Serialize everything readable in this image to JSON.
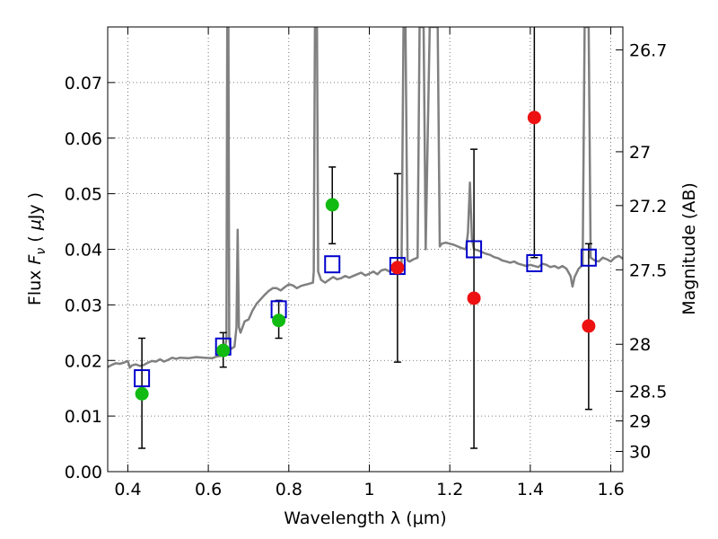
{
  "chart_data": {
    "type": "scatter",
    "xlabel": "Wavelength  λ (μm)",
    "ylabel": "Flux  F_ν  ( μJy )",
    "ylabel_parts": {
      "pre": "Flux  ",
      "F": "F",
      "nu": "ν",
      "mid": "  (  ",
      "mu": "μ",
      "post": "Jy )"
    },
    "y2label": "Magnitude (AB)",
    "xlim": [
      0.35,
      1.63
    ],
    "ylim": [
      0.0,
      0.08
    ],
    "grid": true,
    "x_ticks": [
      {
        "value": 0.4,
        "label": "0.4"
      },
      {
        "value": 0.6,
        "label": "0.6"
      },
      {
        "value": 0.8,
        "label": "0.8"
      },
      {
        "value": 1.0,
        "label": "1"
      },
      {
        "value": 1.2,
        "label": "1.2"
      },
      {
        "value": 1.4,
        "label": "1.4"
      },
      {
        "value": 1.6,
        "label": "1.6"
      }
    ],
    "y_ticks": [
      {
        "value": 0.0,
        "label": "0.00"
      },
      {
        "value": 0.01,
        "label": "0.01"
      },
      {
        "value": 0.02,
        "label": "0.02"
      },
      {
        "value": 0.03,
        "label": "0.03"
      },
      {
        "value": 0.04,
        "label": "0.04"
      },
      {
        "value": 0.05,
        "label": "0.05"
      },
      {
        "value": 0.06,
        "label": "0.06"
      },
      {
        "value": 0.07,
        "label": "0.07"
      }
    ],
    "y2_ticks": [
      {
        "value": 26.7,
        "label": "26.7"
      },
      {
        "value": 27.0,
        "label": "27"
      },
      {
        "value": 27.2,
        "label": "27.2"
      },
      {
        "value": 27.5,
        "label": "27.5"
      },
      {
        "value": 28.0,
        "label": "28"
      },
      {
        "value": 28.5,
        "label": "28.5"
      },
      {
        "value": 29.0,
        "label": "29"
      },
      {
        "value": 30.0,
        "label": "30"
      }
    ],
    "colors": {
      "model": "#808080",
      "detection": "#11bb11",
      "upper": "#ee1111",
      "model_phot": "#0000cc",
      "errorbar": "#000000",
      "grid": "#555555"
    },
    "series": [
      {
        "kind": "model_spectrum",
        "points": [
          [
            0.35,
            0.0188
          ],
          [
            0.36,
            0.0192
          ],
          [
            0.37,
            0.0195
          ],
          [
            0.38,
            0.0194
          ],
          [
            0.39,
            0.0196
          ],
          [
            0.4,
            0.0199
          ],
          [
            0.405,
            0.0187
          ],
          [
            0.41,
            0.0191
          ],
          [
            0.42,
            0.0193
          ],
          [
            0.43,
            0.019
          ],
          [
            0.44,
            0.0192
          ],
          [
            0.45,
            0.0196
          ],
          [
            0.46,
            0.0199
          ],
          [
            0.47,
            0.0198
          ],
          [
            0.48,
            0.0202
          ],
          [
            0.49,
            0.0198
          ],
          [
            0.5,
            0.0201
          ],
          [
            0.51,
            0.0205
          ],
          [
            0.52,
            0.0203
          ],
          [
            0.53,
            0.0205
          ],
          [
            0.55,
            0.0204
          ],
          [
            0.57,
            0.0206
          ],
          [
            0.59,
            0.0205
          ],
          [
            0.61,
            0.0204
          ],
          [
            0.62,
            0.0207
          ],
          [
            0.63,
            0.0208
          ],
          [
            0.64,
            0.0214
          ],
          [
            0.645,
            0.024
          ],
          [
            0.647,
            0.08
          ],
          [
            0.65,
            0.08
          ],
          [
            0.652,
            0.024
          ],
          [
            0.655,
            0.022
          ],
          [
            0.665,
            0.0225
          ],
          [
            0.67,
            0.026
          ],
          [
            0.673,
            0.0435
          ],
          [
            0.676,
            0.026
          ],
          [
            0.68,
            0.025
          ],
          [
            0.69,
            0.027
          ],
          [
            0.7,
            0.0274
          ],
          [
            0.71,
            0.029
          ],
          [
            0.72,
            0.0302
          ],
          [
            0.73,
            0.031
          ],
          [
            0.74,
            0.0318
          ],
          [
            0.75,
            0.0325
          ],
          [
            0.76,
            0.033
          ],
          [
            0.77,
            0.033
          ],
          [
            0.78,
            0.0326
          ],
          [
            0.79,
            0.0332
          ],
          [
            0.8,
            0.0337
          ],
          [
            0.81,
            0.0335
          ],
          [
            0.82,
            0.033
          ],
          [
            0.83,
            0.0334
          ],
          [
            0.84,
            0.0336
          ],
          [
            0.85,
            0.0338
          ],
          [
            0.86,
            0.034
          ],
          [
            0.862,
            0.036
          ],
          [
            0.865,
            0.08
          ],
          [
            0.87,
            0.08
          ],
          [
            0.873,
            0.036
          ],
          [
            0.88,
            0.0345
          ],
          [
            0.89,
            0.034
          ],
          [
            0.9,
            0.0345
          ],
          [
            0.91,
            0.035
          ],
          [
            0.92,
            0.0346
          ],
          [
            0.93,
            0.0348
          ],
          [
            0.94,
            0.0352
          ],
          [
            0.95,
            0.0349
          ],
          [
            0.96,
            0.0352
          ],
          [
            0.97,
            0.0355
          ],
          [
            0.98,
            0.0358
          ],
          [
            0.99,
            0.0353
          ],
          [
            1.0,
            0.0356
          ],
          [
            1.01,
            0.036
          ],
          [
            1.02,
            0.0355
          ],
          [
            1.03,
            0.0362
          ],
          [
            1.04,
            0.0364
          ],
          [
            1.05,
            0.036
          ],
          [
            1.06,
            0.0368
          ],
          [
            1.07,
            0.037
          ],
          [
            1.08,
            0.0372
          ],
          [
            1.085,
            0.08
          ],
          [
            1.09,
            0.08
          ],
          [
            1.095,
            0.038
          ],
          [
            1.1,
            0.0378
          ],
          [
            1.11,
            0.0382
          ],
          [
            1.12,
            0.0385
          ],
          [
            1.125,
            0.08
          ],
          [
            1.135,
            0.08
          ],
          [
            1.14,
            0.04
          ],
          [
            1.15,
            0.08
          ],
          [
            1.16,
            0.08
          ],
          [
            1.165,
            0.08
          ],
          [
            1.17,
            0.08
          ],
          [
            1.175,
            0.0405
          ],
          [
            1.18,
            0.041
          ],
          [
            1.19,
            0.0412
          ],
          [
            1.2,
            0.041
          ],
          [
            1.21,
            0.0408
          ],
          [
            1.22,
            0.0405
          ],
          [
            1.23,
            0.0402
          ],
          [
            1.24,
            0.04
          ],
          [
            1.245,
            0.043
          ],
          [
            1.25,
            0.052
          ],
          [
            1.255,
            0.042
          ],
          [
            1.26,
            0.04
          ],
          [
            1.27,
            0.0398
          ],
          [
            1.28,
            0.0395
          ],
          [
            1.29,
            0.0392
          ],
          [
            1.3,
            0.039
          ],
          [
            1.31,
            0.0386
          ],
          [
            1.32,
            0.0384
          ],
          [
            1.33,
            0.038
          ],
          [
            1.34,
            0.0378
          ],
          [
            1.35,
            0.0376
          ],
          [
            1.36,
            0.0378
          ],
          [
            1.37,
            0.0374
          ],
          [
            1.38,
            0.0372
          ],
          [
            1.39,
            0.037
          ],
          [
            1.4,
            0.0372
          ],
          [
            1.41,
            0.037
          ],
          [
            1.42,
            0.0368
          ],
          [
            1.43,
            0.0374
          ],
          [
            1.44,
            0.0372
          ],
          [
            1.45,
            0.0368
          ],
          [
            1.46,
            0.037
          ],
          [
            1.47,
            0.0366
          ],
          [
            1.48,
            0.037
          ],
          [
            1.49,
            0.0365
          ],
          [
            1.5,
            0.0352
          ],
          [
            1.505,
            0.0333
          ],
          [
            1.51,
            0.035
          ],
          [
            1.52,
            0.0365
          ],
          [
            1.53,
            0.0372
          ],
          [
            1.535,
            0.08
          ],
          [
            1.545,
            0.08
          ],
          [
            1.55,
            0.0385
          ],
          [
            1.56,
            0.038
          ],
          [
            1.57,
            0.0378
          ],
          [
            1.58,
            0.0385
          ],
          [
            1.59,
            0.0382
          ],
          [
            1.6,
            0.0378
          ],
          [
            1.61,
            0.0385
          ],
          [
            1.62,
            0.0388
          ],
          [
            1.63,
            0.0383
          ]
        ]
      },
      {
        "kind": "model_photometry",
        "points": [
          {
            "x": 0.435,
            "y": 0.0168
          },
          {
            "x": 0.637,
            "y": 0.0225
          },
          {
            "x": 0.775,
            "y": 0.0292
          },
          {
            "x": 0.908,
            "y": 0.0373
          },
          {
            "x": 1.07,
            "y": 0.037
          },
          {
            "x": 1.26,
            "y": 0.04
          },
          {
            "x": 1.41,
            "y": 0.0375
          },
          {
            "x": 1.545,
            "y": 0.0385
          }
        ]
      },
      {
        "kind": "detections",
        "points": [
          {
            "x": 0.435,
            "y": 0.014,
            "err_low": 0.0042,
            "err_high": 0.024
          },
          {
            "x": 0.637,
            "y": 0.0218,
            "err_low": 0.0188,
            "err_high": 0.025
          },
          {
            "x": 0.775,
            "y": 0.0272,
            "err_low": 0.024,
            "err_high": 0.0308
          },
          {
            "x": 0.908,
            "y": 0.048,
            "err_low": 0.041,
            "err_high": 0.0548
          }
        ]
      },
      {
        "kind": "upper_limits",
        "points": [
          {
            "x": 1.07,
            "y": 0.0367,
            "err_low": 0.0197,
            "err_high": 0.0536
          },
          {
            "x": 1.26,
            "y": 0.0312,
            "err_low": 0.0042,
            "err_high": 0.058
          },
          {
            "x": 1.41,
            "y": 0.0637,
            "err_low": 0.0385,
            "err_high": 0.08
          },
          {
            "x": 1.545,
            "y": 0.0262,
            "err_low": 0.0112,
            "err_high": 0.041
          }
        ]
      }
    ]
  }
}
